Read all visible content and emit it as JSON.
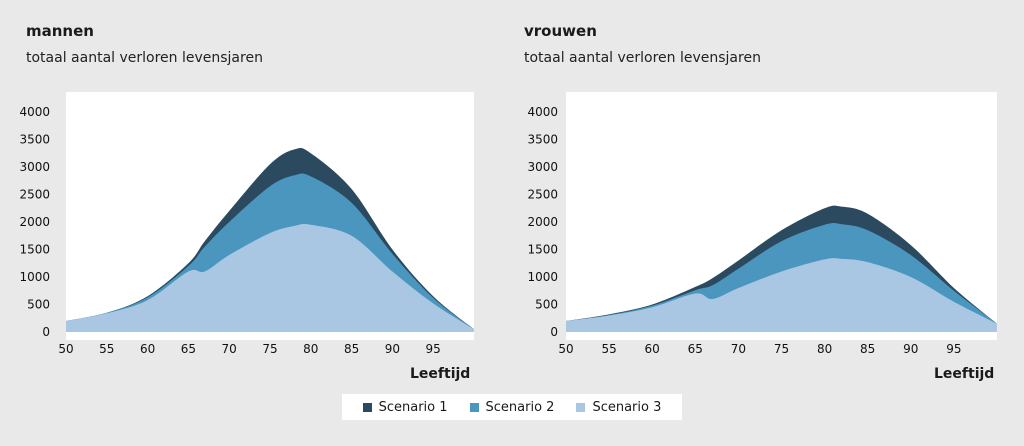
{
  "colors": {
    "scenario1": "#2b4a5f",
    "scenario2": "#4a96be",
    "scenario3": "#a9c6e2"
  },
  "legend": [
    {
      "label": "Scenario 1",
      "color": "#2b4a5f"
    },
    {
      "label": "Scenario 2",
      "color": "#4a96be"
    },
    {
      "label": "Scenario 3",
      "color": "#a9c6e2"
    }
  ],
  "chart_data": [
    {
      "type": "area",
      "title": "mannen",
      "subtitle": "totaal aantal verloren levensjaren",
      "xlabel": "Leeftijd",
      "ylabel": "",
      "xlim": [
        50,
        100
      ],
      "ylim": [
        0,
        4000
      ],
      "xticks": [
        50,
        55,
        60,
        65,
        70,
        75,
        80,
        85,
        90,
        95
      ],
      "yticks": [
        0,
        500,
        1000,
        1500,
        2000,
        2500,
        3000,
        3500,
        4000
      ],
      "grid": false,
      "x": [
        50,
        55,
        60,
        65,
        67,
        70,
        75,
        78,
        80,
        85,
        90,
        95,
        100
      ],
      "series": [
        {
          "name": "Scenario 1",
          "values": [
            200,
            350,
            650,
            1250,
            1650,
            2200,
            3050,
            3320,
            3250,
            2600,
            1500,
            650,
            50
          ]
        },
        {
          "name": "Scenario 2",
          "values": [
            200,
            350,
            630,
            1200,
            1550,
            2000,
            2650,
            2850,
            2830,
            2350,
            1420,
            620,
            50
          ]
        },
        {
          "name": "Scenario 3",
          "values": [
            200,
            340,
            580,
            1100,
            1100,
            1400,
            1800,
            1930,
            1950,
            1750,
            1100,
            520,
            50
          ]
        }
      ]
    },
    {
      "type": "area",
      "title": "vrouwen",
      "subtitle": "totaal aantal verloren levensjaren",
      "xlabel": "Leeftijd",
      "ylabel": "",
      "xlim": [
        50,
        100
      ],
      "ylim": [
        0,
        4000
      ],
      "xticks": [
        50,
        55,
        60,
        65,
        70,
        75,
        80,
        85,
        90,
        95
      ],
      "yticks": [
        0,
        500,
        1000,
        1500,
        2000,
        2500,
        3000,
        3500,
        4000
      ],
      "grid": false,
      "x": [
        50,
        55,
        60,
        65,
        67,
        70,
        75,
        80,
        82,
        85,
        90,
        95,
        100
      ],
      "series": [
        {
          "name": "Scenario 1",
          "values": [
            200,
            320,
            500,
            820,
            980,
            1300,
            1850,
            2250,
            2280,
            2150,
            1580,
            800,
            150
          ]
        },
        {
          "name": "Scenario 2",
          "values": [
            200,
            310,
            480,
            760,
            850,
            1150,
            1650,
            1950,
            1960,
            1850,
            1400,
            750,
            150
          ]
        },
        {
          "name": "Scenario 3",
          "values": [
            200,
            300,
            450,
            700,
            600,
            800,
            1100,
            1320,
            1330,
            1270,
            1000,
            550,
            150
          ]
        }
      ]
    }
  ]
}
